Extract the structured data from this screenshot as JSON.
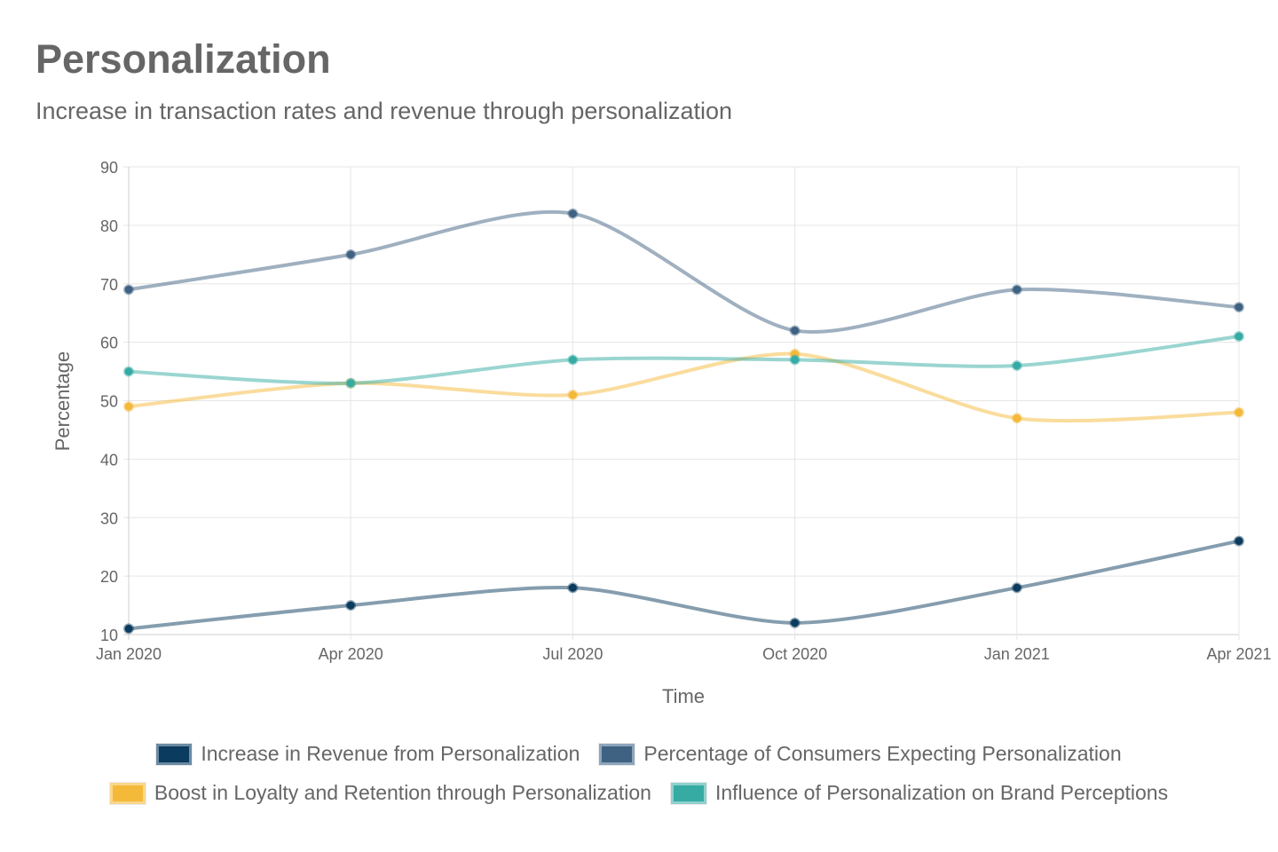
{
  "chart_data": {
    "type": "line",
    "title": "Personalization",
    "subtitle": "Increase in transaction rates and revenue through personalization",
    "xlabel": "Time",
    "ylabel": "Percentage",
    "categories": [
      "Jan 2020",
      "Apr 2020",
      "Jul 2020",
      "Oct 2020",
      "Jan 2021",
      "Apr 2021"
    ],
    "ylim": [
      10,
      90
    ],
    "yticks": [
      "10",
      "20",
      "30",
      "40",
      "50",
      "60",
      "70",
      "80",
      "90"
    ],
    "grid": true,
    "legend_position": "bottom",
    "series": [
      {
        "name": "Increase in Revenue from Personalization",
        "color": "#0b3b5e",
        "values": [
          11,
          15,
          18,
          12,
          18,
          26
        ]
      },
      {
        "name": "Percentage of Consumers Expecting Personalization",
        "color": "#3f6282",
        "values": [
          69,
          75,
          82,
          62,
          69,
          66
        ]
      },
      {
        "name": "Boost in Loyalty and Retention through Personalization",
        "color": "#f5b93a",
        "values": [
          49,
          53,
          51,
          58,
          47,
          48
        ]
      },
      {
        "name": "Influence of Personalization on Brand Perceptions",
        "color": "#35aba4",
        "values": [
          55,
          53,
          57,
          57,
          56,
          61
        ]
      }
    ]
  }
}
